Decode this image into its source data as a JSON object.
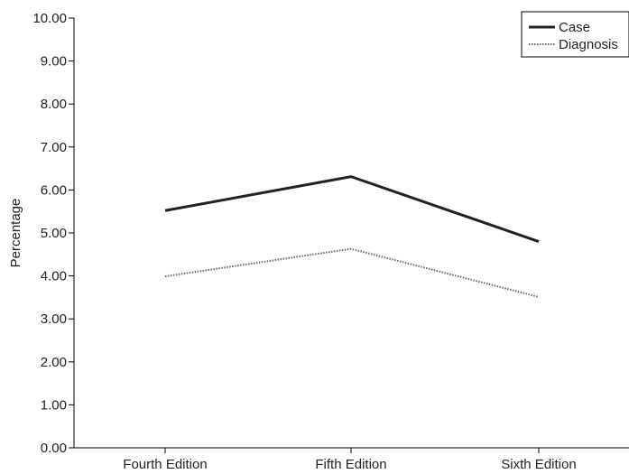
{
  "chart_data": {
    "type": "line",
    "categories": [
      "Fourth Edition",
      "Fifth Edition",
      "Sixth Edition"
    ],
    "series": [
      {
        "name": "Case",
        "values": [
          5.52,
          6.31,
          4.8
        ],
        "color": "#222222",
        "style": "solid"
      },
      {
        "name": "Diagnosis",
        "values": [
          3.99,
          4.63,
          3.51
        ],
        "color": "#666666",
        "style": "dotted"
      }
    ],
    "title": "",
    "xlabel": "",
    "ylabel": "Percentage",
    "ylim": [
      0,
      10
    ],
    "yticks": [
      "0.00",
      "1.00",
      "2.00",
      "3.00",
      "4.00",
      "5.00",
      "6.00",
      "7.00",
      "8.00",
      "9.00",
      "10.00"
    ],
    "grid": false,
    "legend_position": "top-right"
  }
}
